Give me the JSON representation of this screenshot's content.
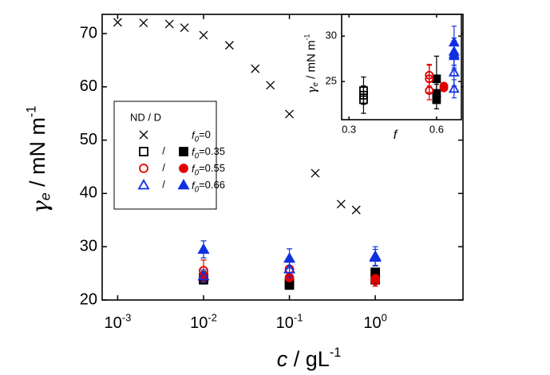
{
  "chart_data": [
    {
      "type": "scatter",
      "xscale": "log",
      "xlim": [
        0.00066,
        10.5
      ],
      "ylim": [
        20,
        73.6
      ],
      "xticks": [
        {
          "value": 0.001,
          "label": "10",
          "exponent": "-3"
        },
        {
          "value": 0.01,
          "label": "10",
          "exponent": "-2"
        },
        {
          "value": 0.1,
          "label": "10",
          "exponent": "-1"
        },
        {
          "value": 1,
          "label": "10",
          "exponent": "0"
        }
      ],
      "yticks": [
        20,
        30,
        40,
        50,
        60,
        70
      ],
      "x_label": [
        "c",
        " / gL",
        "-1"
      ],
      "y_label": [
        "γ",
        "e",
        " / mN m",
        "-1"
      ],
      "legend": {
        "title": "ND / D",
        "separator": "/",
        "entries": [
          {
            "label": [
              "f",
              "0",
              "=0"
            ],
            "series": [
              0
            ]
          },
          {
            "label": [
              "f",
              "0",
              "=0.35"
            ],
            "series": [
              1,
              2
            ]
          },
          {
            "label": [
              "f",
              "0",
              "=0.55"
            ],
            "series": [
              3,
              4
            ]
          },
          {
            "label": [
              "f",
              "0",
              "=0.66"
            ],
            "series": [
              5,
              6
            ]
          }
        ]
      },
      "series": [
        {
          "marker": "x",
          "filled": false,
          "color": "#000000",
          "x": [
            0.001,
            0.002,
            0.004,
            0.006,
            0.01,
            0.02,
            0.04,
            0.06,
            0.1,
            0.2,
            0.4,
            0.6
          ],
          "values": [
            72.1,
            72.0,
            71.8,
            71.1,
            69.7,
            67.8,
            63.4,
            60.3,
            54.9,
            43.8,
            38.0,
            36.9
          ]
        },
        {
          "marker": "square",
          "filled": false,
          "color": "#000000",
          "x": [
            0.01,
            0.1,
            1
          ],
          "values": [
            24.2,
            23.2,
            23.8
          ],
          "errors": [
            1.2,
            0.8,
            0.8
          ]
        },
        {
          "marker": "square",
          "filled": true,
          "color": "#000000",
          "x": [
            0.01,
            0.1,
            1
          ],
          "values": [
            23.8,
            22.8,
            25.2
          ]
        },
        {
          "marker": "circle",
          "filled": false,
          "color": "#e00000",
          "x": [
            0.01,
            0.1,
            1
          ],
          "values": [
            25.5,
            25.8,
            23.6
          ],
          "errors": [
            2.0,
            1.5,
            1.0
          ]
        },
        {
          "marker": "circle",
          "filled": true,
          "color": "#e00000",
          "x": [
            0.01,
            0.1,
            1
          ],
          "values": [
            24.5,
            24.2,
            24.0
          ]
        },
        {
          "marker": "triangle",
          "filled": false,
          "color": "#1030e0",
          "x": [
            0.01,
            0.1,
            1
          ],
          "values": [
            24.5,
            25.8,
            28.0
          ],
          "errors": [
            1.2,
            1.5,
            1.5
          ]
        },
        {
          "marker": "triangle",
          "filled": true,
          "color": "#1030e0",
          "x": [
            0.01,
            0.1,
            1
          ],
          "values": [
            29.5,
            27.8,
            28.2
          ],
          "errors": [
            1.6,
            1.8,
            1.8
          ]
        }
      ]
    },
    {
      "type": "scatter",
      "xscale": "linear",
      "xlim": [
        0.275,
        0.685
      ],
      "ylim": [
        20.8,
        32.4
      ],
      "xticks": [
        0.3,
        0.6
      ],
      "yticks": [
        25,
        30
      ],
      "x_label": [
        "f"
      ],
      "y_label": [
        "γ",
        "e",
        " / mN m",
        "-1"
      ],
      "series": [
        {
          "marker": "square",
          "filled": false,
          "color": "#000000",
          "x": [
            0.35,
            0.35,
            0.35
          ],
          "values": [
            23.0,
            23.5,
            24.0
          ],
          "errors": [
            1.5,
            1.0,
            1.5
          ]
        },
        {
          "marker": "square",
          "filled": true,
          "color": "#000000",
          "x": [
            0.6,
            0.6,
            0.6
          ],
          "values": [
            23.0,
            23.7,
            25.3
          ],
          "errors": [
            1.0,
            1.0,
            2.5
          ]
        },
        {
          "marker": "circle",
          "filled": false,
          "color": "#e00000",
          "x": [
            0.575,
            0.575,
            0.575
          ],
          "values": [
            24.0,
            25.3,
            25.7
          ],
          "errors": [
            1.0,
            1.5,
            1.2
          ]
        },
        {
          "marker": "circle",
          "filled": true,
          "color": "#e00000",
          "x": [
            0.625,
            0.625
          ],
          "values": [
            24.3,
            24.5
          ]
        },
        {
          "marker": "triangle",
          "filled": false,
          "color": "#1030e0",
          "x": [
            0.66,
            0.66,
            0.66,
            0.66
          ],
          "values": [
            24.2,
            26.0,
            28.0,
            28.3
          ],
          "errors": [
            1.0,
            1.5,
            1.5,
            1.5
          ]
        },
        {
          "marker": "triangle",
          "filled": true,
          "color": "#1030e0",
          "x": [
            0.66,
            0.66,
            0.66
          ],
          "values": [
            27.8,
            28.3,
            29.3
          ],
          "errors": [
            1.5,
            1.5,
            1.8
          ]
        }
      ]
    }
  ]
}
